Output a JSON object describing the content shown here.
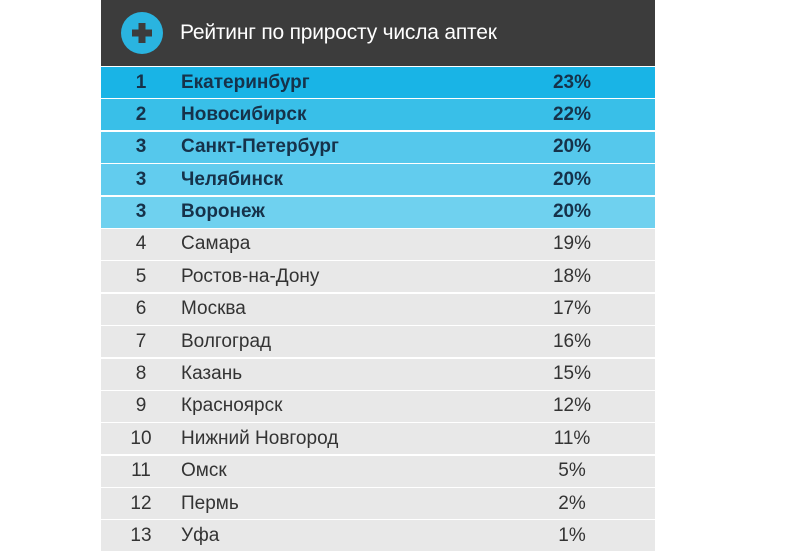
{
  "title": "Рейтинг по приросту числа аптек",
  "colors": {
    "header_bg": "#3c3c3c",
    "icon_bg": "#2ab4e0",
    "top_rows": [
      "#19b4e6",
      "#39bfe8",
      "#55c8ec",
      "#62ccee",
      "#6fd1ef"
    ],
    "plain_row": "#e8e8e8"
  },
  "rows": [
    {
      "rank": "1",
      "city": "Екатеринбург",
      "pct": "23%"
    },
    {
      "rank": "2",
      "city": "Новосибирск",
      "pct": "22%"
    },
    {
      "rank": "3",
      "city": "Санкт-Петербург",
      "pct": "20%"
    },
    {
      "rank": "3",
      "city": "Челябинск",
      "pct": "20%"
    },
    {
      "rank": "3",
      "city": "Воронеж",
      "pct": "20%"
    },
    {
      "rank": "4",
      "city": "Самара",
      "pct": "19%"
    },
    {
      "rank": "5",
      "city": "Ростов-на-Дону",
      "pct": "18%"
    },
    {
      "rank": "6",
      "city": "Москва",
      "pct": "17%"
    },
    {
      "rank": "7",
      "city": "Волгоград",
      "pct": "16%"
    },
    {
      "rank": "8",
      "city": "Казань",
      "pct": "15%"
    },
    {
      "rank": "9",
      "city": "Красноярск",
      "pct": "12%"
    },
    {
      "rank": "10",
      "city": "Нижний Новгород",
      "pct": "11%"
    },
    {
      "rank": "11",
      "city": "Омск",
      "pct": "5%"
    },
    {
      "rank": "12",
      "city": "Пермь",
      "pct": "2%"
    },
    {
      "rank": "13",
      "city": "Уфа",
      "pct": "1%"
    }
  ]
}
